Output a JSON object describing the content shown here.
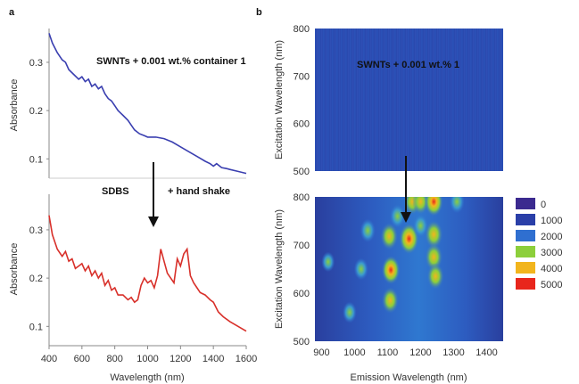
{
  "panel_labels": {
    "a": "a",
    "b": "b"
  },
  "annotations": {
    "spectrum_label": "SWNTs + 0.001 wt.% container 1",
    "map_label": "SWNTs + 0.001 wt.% 1",
    "process_left": "SDBS",
    "process_right": "+ hand shake"
  },
  "colors": {
    "before_line": "#3a3fb0",
    "after_line": "#d8302a",
    "map_background": "#2b4fb3",
    "arrow": "#111111"
  },
  "chart_data": [
    {
      "type": "line",
      "id": "absorbance-top",
      "xlim": [
        400,
        1600
      ],
      "ylim": [
        0.06,
        0.37
      ],
      "y_ticks": [
        "0.1",
        "0.2",
        "0.3"
      ],
      "y_tick_values": [
        0.1,
        0.2,
        0.3
      ],
      "ylabel": "Absorbance",
      "series": [
        {
          "x": [
            400,
            420,
            450,
            480,
            500,
            520,
            550,
            580,
            600,
            620,
            640,
            660,
            680,
            700,
            720,
            740,
            760,
            780,
            800,
            820,
            850,
            880,
            900,
            920,
            950,
            980,
            1000,
            1050,
            1100,
            1150,
            1200,
            1250,
            1300,
            1350,
            1380,
            1400,
            1420,
            1450,
            1480,
            1500,
            1550,
            1600
          ],
          "values": [
            0.36,
            0.34,
            0.32,
            0.305,
            0.3,
            0.285,
            0.275,
            0.265,
            0.27,
            0.26,
            0.265,
            0.25,
            0.255,
            0.245,
            0.25,
            0.235,
            0.225,
            0.22,
            0.21,
            0.2,
            0.19,
            0.18,
            0.17,
            0.16,
            0.152,
            0.148,
            0.145,
            0.145,
            0.142,
            0.135,
            0.125,
            0.115,
            0.105,
            0.095,
            0.09,
            0.085,
            0.09,
            0.082,
            0.08,
            0.078,
            0.074,
            0.07
          ]
        }
      ]
    },
    {
      "type": "line",
      "id": "absorbance-bottom",
      "xlim": [
        400,
        1600
      ],
      "ylim": [
        0.06,
        0.37
      ],
      "x_ticks": [
        "400",
        "600",
        "800",
        "1000",
        "1200",
        "1400",
        "1600"
      ],
      "x_tick_values": [
        400,
        600,
        800,
        1000,
        1200,
        1400,
        1600
      ],
      "y_ticks": [
        "0.1",
        "0.2",
        "0.3"
      ],
      "y_tick_values": [
        0.1,
        0.2,
        0.3
      ],
      "xlabel": "Wavelength (nm)",
      "ylabel": "Absorbance",
      "series": [
        {
          "x": [
            400,
            420,
            450,
            480,
            500,
            520,
            540,
            560,
            580,
            600,
            620,
            640,
            660,
            680,
            700,
            720,
            740,
            760,
            780,
            800,
            820,
            850,
            880,
            900,
            920,
            940,
            960,
            980,
            1000,
            1020,
            1040,
            1060,
            1080,
            1100,
            1120,
            1140,
            1160,
            1180,
            1200,
            1220,
            1240,
            1260,
            1280,
            1300,
            1320,
            1350,
            1380,
            1400,
            1430,
            1460,
            1500,
            1550,
            1600
          ],
          "values": [
            0.33,
            0.29,
            0.26,
            0.245,
            0.255,
            0.235,
            0.24,
            0.22,
            0.225,
            0.23,
            0.215,
            0.225,
            0.205,
            0.215,
            0.2,
            0.21,
            0.185,
            0.195,
            0.175,
            0.18,
            0.165,
            0.165,
            0.155,
            0.16,
            0.15,
            0.155,
            0.185,
            0.2,
            0.19,
            0.195,
            0.18,
            0.205,
            0.26,
            0.235,
            0.21,
            0.2,
            0.19,
            0.24,
            0.225,
            0.25,
            0.26,
            0.205,
            0.19,
            0.18,
            0.17,
            0.165,
            0.155,
            0.15,
            0.13,
            0.12,
            0.11,
            0.1,
            0.09
          ]
        }
      ]
    },
    {
      "type": "heatmap",
      "id": "pl-map-top",
      "xlim": [
        880,
        1450
      ],
      "ylim": [
        500,
        800
      ],
      "y_ticks": [
        "500",
        "600",
        "700",
        "800"
      ],
      "y_tick_values": [
        500,
        600,
        700,
        800
      ],
      "ylabel": "Excitation Wavelength (nm)",
      "peaks": []
    },
    {
      "type": "heatmap",
      "id": "pl-map-bottom",
      "xlim": [
        880,
        1450
      ],
      "ylim": [
        500,
        800
      ],
      "x_ticks": [
        "900",
        "1000",
        "1100",
        "1200",
        "1300",
        "1400"
      ],
      "x_tick_values": [
        900,
        1000,
        1100,
        1200,
        1300,
        1400
      ],
      "y_ticks": [
        "500",
        "600",
        "700",
        "800"
      ],
      "y_tick_values": [
        500,
        600,
        700,
        800
      ],
      "xlabel": "Emission Wavelength (nm)",
      "ylabel": "Excitation Wavelength (nm)",
      "legend": [
        {
          "label": "0",
          "color": "#3b2a8f"
        },
        {
          "label": "1000",
          "color": "#2a3fa8"
        },
        {
          "label": "2000",
          "color": "#2f6fd0"
        },
        {
          "label": "3000",
          "color": "#8ccf3b"
        },
        {
          "label": "4000",
          "color": "#f2b51d"
        },
        {
          "label": "5000",
          "color": "#e8261c"
        }
      ],
      "peaks": [
        {
          "x": 1108,
          "y": 585,
          "value": 3600
        },
        {
          "x": 1110,
          "y": 648,
          "value": 4300
        },
        {
          "x": 1105,
          "y": 718,
          "value": 3800
        },
        {
          "x": 1130,
          "y": 760,
          "value": 2600
        },
        {
          "x": 1165,
          "y": 713,
          "value": 5000
        },
        {
          "x": 1175,
          "y": 790,
          "value": 3500
        },
        {
          "x": 1200,
          "y": 740,
          "value": 2500
        },
        {
          "x": 1200,
          "y": 790,
          "value": 3200
        },
        {
          "x": 1240,
          "y": 722,
          "value": 4200
        },
        {
          "x": 1240,
          "y": 675,
          "value": 4000
        },
        {
          "x": 1245,
          "y": 635,
          "value": 3600
        },
        {
          "x": 1240,
          "y": 790,
          "value": 4400
        },
        {
          "x": 1040,
          "y": 730,
          "value": 2500
        },
        {
          "x": 1020,
          "y": 650,
          "value": 2000
        },
        {
          "x": 985,
          "y": 560,
          "value": 1800
        },
        {
          "x": 920,
          "y": 665,
          "value": 1400
        },
        {
          "x": 1310,
          "y": 790,
          "value": 2400
        }
      ]
    }
  ]
}
